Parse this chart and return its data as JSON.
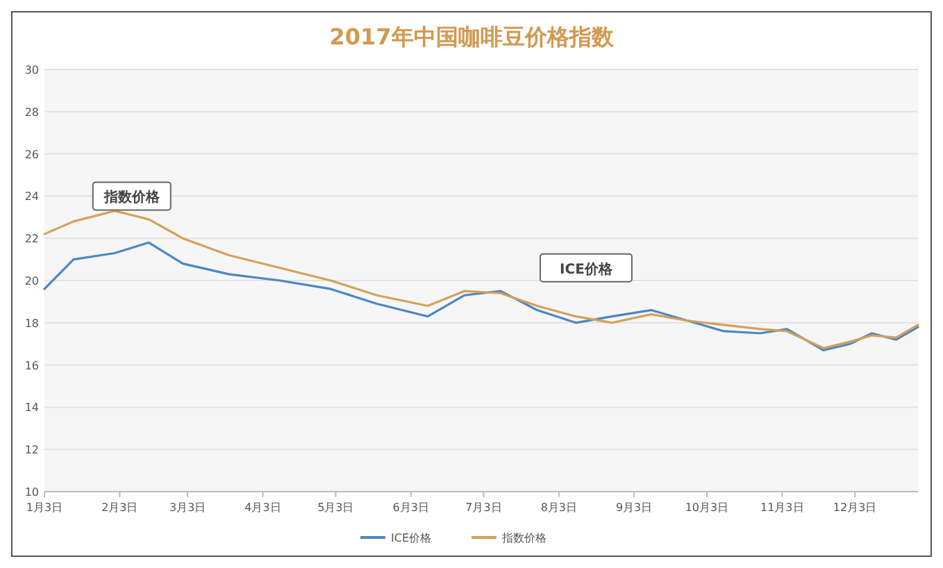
{
  "chart_data": {
    "type": "line",
    "title": "2017年中国咖啡豆价格指数",
    "x": [
      "2017-01-03",
      "2017-01-15",
      "2017-02-01",
      "2017-02-15",
      "2017-03-01",
      "2017-03-20",
      "2017-04-10",
      "2017-05-01",
      "2017-05-20",
      "2017-06-10",
      "2017-06-25",
      "2017-07-10",
      "2017-07-25",
      "2017-08-10",
      "2017-08-25",
      "2017-09-10",
      "2017-09-25",
      "2017-10-10",
      "2017-10-25",
      "2017-11-05",
      "2017-11-20",
      "2017-12-01",
      "2017-12-10",
      "2017-12-20",
      "2017-12-29"
    ],
    "series": [
      {
        "name": "ICE价格",
        "color": "#4a86c6",
        "values": [
          19.6,
          21.0,
          21.3,
          21.8,
          20.8,
          20.3,
          20.0,
          19.6,
          18.9,
          18.3,
          19.3,
          19.5,
          18.6,
          18.0,
          18.3,
          18.6,
          18.1,
          17.6,
          17.5,
          17.7,
          16.7,
          17.0,
          17.5,
          17.2,
          17.8
        ]
      },
      {
        "name": "指数价格",
        "color": "#d4a05a",
        "values": [
          22.2,
          22.8,
          23.3,
          22.9,
          22.0,
          21.2,
          20.6,
          20.0,
          19.3,
          18.8,
          19.5,
          19.4,
          18.8,
          18.3,
          18.0,
          18.4,
          18.1,
          17.9,
          17.7,
          17.6,
          16.8,
          17.1,
          17.4,
          17.3,
          17.9
        ]
      }
    ],
    "xlim": [
      "2017-01-03",
      "2017-12-29"
    ],
    "xticks": [
      {
        "value": "2017-01-03",
        "label": "1月3日"
      },
      {
        "value": "2017-02-03",
        "label": "2月3日"
      },
      {
        "value": "2017-03-03",
        "label": "3月3日"
      },
      {
        "value": "2017-04-03",
        "label": "4月3日"
      },
      {
        "value": "2017-05-03",
        "label": "5月3日"
      },
      {
        "value": "2017-06-03",
        "label": "6月3日"
      },
      {
        "value": "2017-07-03",
        "label": "7月3日"
      },
      {
        "value": "2017-08-03",
        "label": "8月3日"
      },
      {
        "value": "2017-09-03",
        "label": "9月3日"
      },
      {
        "value": "2017-10-03",
        "label": "10月3日"
      },
      {
        "value": "2017-11-03",
        "label": "11月3日"
      },
      {
        "value": "2017-12-03",
        "label": "12月3日"
      }
    ],
    "ylim": [
      10,
      30
    ],
    "yticks": [
      10,
      12,
      14,
      16,
      18,
      20,
      22,
      24,
      26,
      28,
      30
    ],
    "grid": "y",
    "legend": "bottom",
    "marker": "none",
    "line_style": "solid",
    "annotations": [
      "指数价格",
      "ICE价格"
    ]
  }
}
